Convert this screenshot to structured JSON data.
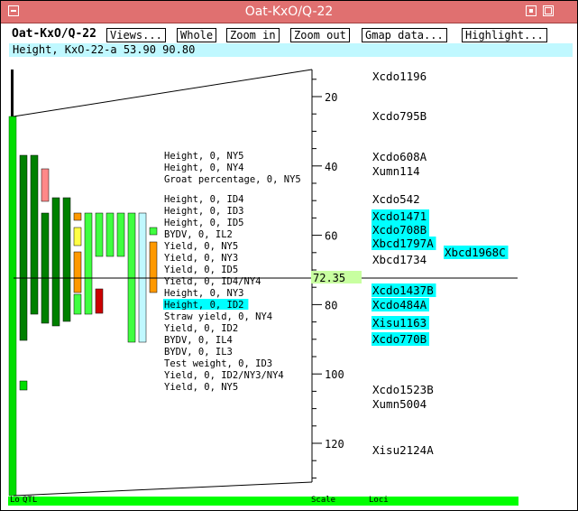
{
  "window": {
    "title": "Oat-KxO/Q-22"
  },
  "toolbar": {
    "label": "Oat-KxO/Q-22",
    "buttons": [
      "Views...",
      "Whole",
      "Zoom in",
      "Zoom out",
      "Gmap data...",
      "Highlight..."
    ]
  },
  "info": "Height, KxO-22-a 53.90 90.80",
  "scale": {
    "ticks": [
      20,
      40,
      60,
      80,
      100,
      120
    ],
    "cursor_value": "72.35"
  },
  "traits": [
    "Height, 0, NY5",
    "Height, 0, NY4",
    "Groat percentage, 0, NY5",
    "Height, 0, ID4",
    "Height, 0, ID3",
    "Height, 0, ID5",
    "BYDV, 0, IL2",
    "Yield, 0, NY5",
    "Yield, 0, NY3",
    "Yield, 0, ID5",
    "Yield, 0, ID4/NY4",
    "Height, 0, NY3",
    "Height, 0, ID2",
    "Straw yield, 0, NY4",
    "Yield, 0, ID2",
    "BYDV, 0, IL4",
    "BYDV, 0, IL3",
    "Test weight, 0, ID3",
    "Yield, 0, ID2/NY3/NY4",
    "Yield, 0, NY5"
  ],
  "highlighted_trait": "Height, 0, ID2",
  "loci": [
    {
      "name": "Xcdo1196",
      "highlight": false
    },
    {
      "name": "Xcdo795B",
      "highlight": false
    },
    {
      "name": "Xcdo608A",
      "highlight": false
    },
    {
      "name": "Xumn114",
      "highlight": false
    },
    {
      "name": "Xcdo542",
      "highlight": false
    },
    {
      "name": "Xcdo1471",
      "highlight": true
    },
    {
      "name": "Xcdo708B",
      "highlight": true
    },
    {
      "name": "Xbcd1797A",
      "highlight": true
    },
    {
      "name": "Xbcd1968C",
      "highlight": true
    },
    {
      "name": "Xbcd1734",
      "highlight": false
    },
    {
      "name": "Xcdo1437B",
      "highlight": true
    },
    {
      "name": "Xcdo484A",
      "highlight": true
    },
    {
      "name": "Xisu1163",
      "highlight": true
    },
    {
      "name": "Xcdo770B",
      "highlight": true
    },
    {
      "name": "Xcdo1523B",
      "highlight": false
    },
    {
      "name": "Xumn5004",
      "highlight": false
    },
    {
      "name": "Xisu2124A",
      "highlight": false
    }
  ],
  "bottom_labels": [
    "Lo",
    "QTL",
    "Scale",
    "Loci"
  ],
  "colors": {
    "title_bg": "#e07070",
    "highlight": "#00ffff",
    "info_bg": "#c0f8ff",
    "qtl_dark": "#008000",
    "qtl_bright": "#00dd00",
    "qtl_light": "#40ff40",
    "qtl_orange": "#ff9900",
    "qtl_yellow": "#ffff44",
    "qtl_pink": "#ff8888",
    "qtl_red": "#cc0000",
    "qtl_cyan": "#c0f8ff"
  }
}
